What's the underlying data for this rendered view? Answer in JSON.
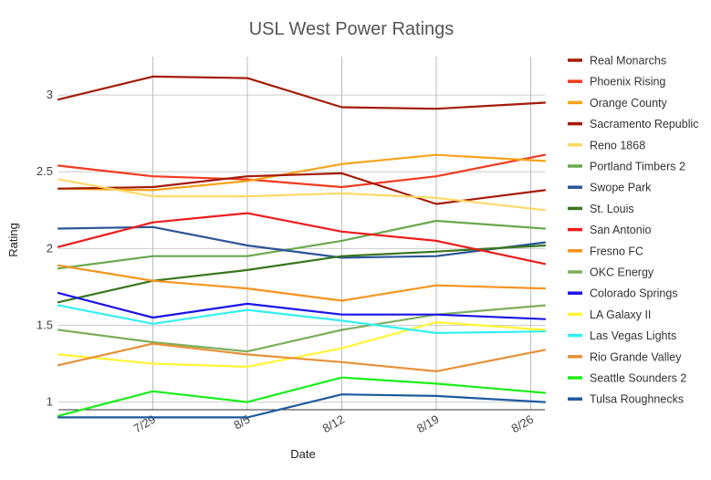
{
  "chart_data": {
    "type": "line",
    "title": "USL West Power Ratings",
    "xlabel": "Date",
    "ylabel": "Rating",
    "x_ticks": [
      "7/29",
      "8/5",
      "8/12",
      "8/19",
      "8/26"
    ],
    "x_tick_values": [
      1,
      2,
      3,
      4,
      5
    ],
    "x_range": [
      0,
      5.15
    ],
    "ylim": [
      0.95,
      3.25
    ],
    "y_ticks": [
      1,
      1.5,
      2,
      2.5,
      3
    ],
    "y_tick_labels": [
      "1",
      "1.5",
      "2",
      "2.5",
      "3"
    ],
    "grid": true,
    "legend_position": "right",
    "x": [
      0,
      1,
      2,
      3,
      4,
      5.15
    ],
    "series": [
      {
        "name": "Real Monarchs",
        "color": "#A31B08",
        "values": [
          2.97,
          3.12,
          3.11,
          2.92,
          2.91,
          2.95
        ]
      },
      {
        "name": "Phoenix Rising",
        "color": "#F23A1F",
        "values": [
          2.54,
          2.47,
          2.45,
          2.4,
          2.47,
          2.61
        ]
      },
      {
        "name": "Orange County",
        "color": "#F7A31A",
        "values": [
          2.39,
          2.38,
          2.44,
          2.55,
          2.61,
          2.57
        ]
      },
      {
        "name": "Sacramento Republic",
        "color": "#A31B08",
        "values": [
          2.39,
          2.4,
          2.47,
          2.49,
          2.29,
          2.38
        ]
      },
      {
        "name": "Reno 1868",
        "color": "#FFD966",
        "values": [
          2.45,
          2.34,
          2.34,
          2.36,
          2.33,
          2.25
        ]
      },
      {
        "name": "Portland Timbers 2",
        "color": "#6AA84F",
        "values": [
          1.87,
          1.95,
          1.95,
          2.05,
          2.18,
          2.13
        ]
      },
      {
        "name": "Swope Park",
        "color": "#2B5597",
        "values": [
          2.13,
          2.14,
          2.02,
          1.94,
          1.95,
          2.04
        ]
      },
      {
        "name": "St. Louis",
        "color": "#38761D",
        "values": [
          1.65,
          1.79,
          1.86,
          1.95,
          1.98,
          2.02
        ]
      },
      {
        "name": "San Antonio",
        "color": "#EE1B1B",
        "values": [
          2.01,
          2.17,
          2.23,
          2.11,
          2.05,
          1.9
        ]
      },
      {
        "name": "Fresno FC",
        "color": "#F7931E",
        "values": [
          1.89,
          1.79,
          1.74,
          1.66,
          1.76,
          1.74
        ]
      },
      {
        "name": "OKC Energy",
        "color": "#7CAF5C",
        "values": [
          1.47,
          1.39,
          1.33,
          1.47,
          1.57,
          1.63
        ]
      },
      {
        "name": "Colorado Springs",
        "color": "#1B12E8",
        "values": [
          1.71,
          1.55,
          1.64,
          1.57,
          1.57,
          1.54
        ]
      },
      {
        "name": "LA Galaxy II",
        "color": "#FFF533",
        "values": [
          1.31,
          1.25,
          1.23,
          1.35,
          1.52,
          1.47
        ]
      },
      {
        "name": "Las Vegas Lights",
        "color": "#33F0F0",
        "values": [
          1.63,
          1.51,
          1.6,
          1.53,
          1.45,
          1.46
        ]
      },
      {
        "name": "Rio Grande Valley",
        "color": "#E69138",
        "values": [
          1.24,
          1.38,
          1.31,
          1.26,
          1.2,
          1.34
        ]
      },
      {
        "name": "Seattle Sounders 2",
        "color": "#1BEE1B",
        "values": [
          0.91,
          1.07,
          1.0,
          1.16,
          1.12,
          1.06
        ]
      },
      {
        "name": "Tulsa Roughnecks",
        "color": "#1F5A9E",
        "values": [
          0.9,
          0.9,
          0.9,
          1.05,
          1.04,
          1.0
        ]
      }
    ]
  }
}
